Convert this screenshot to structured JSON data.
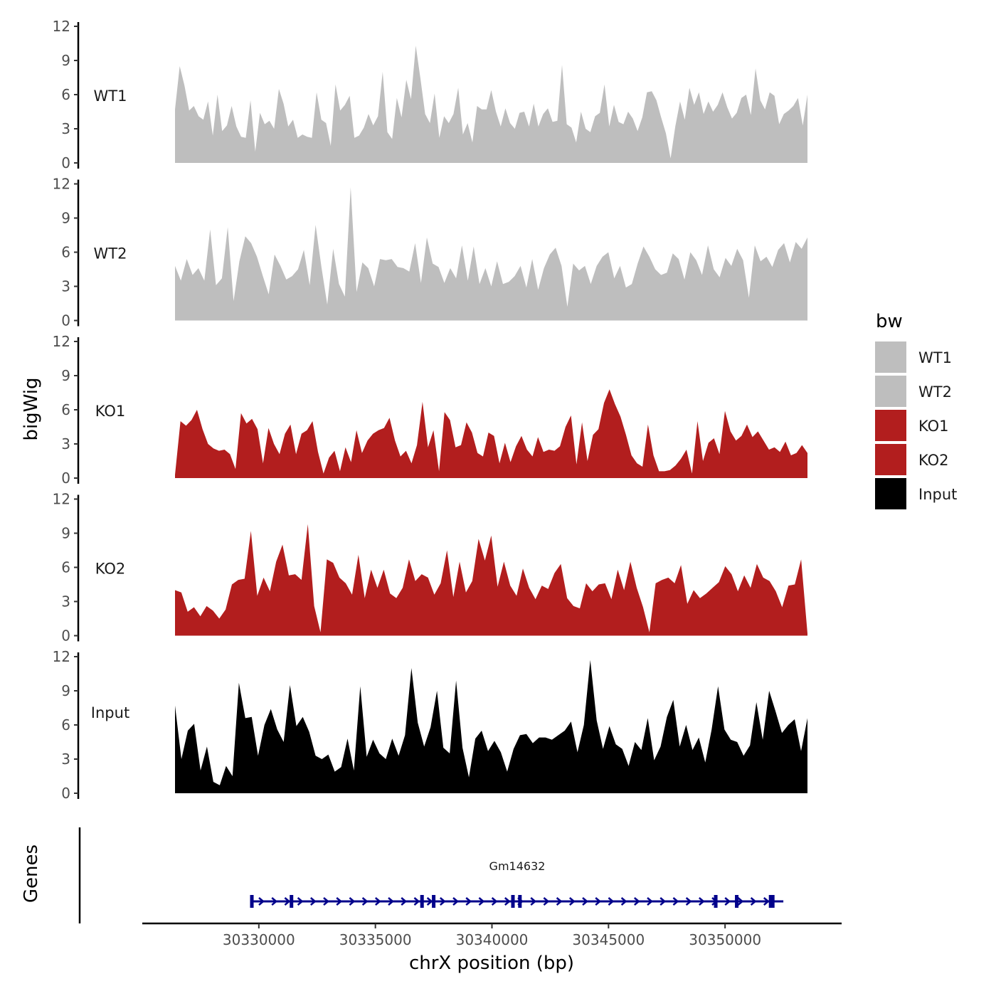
{
  "chart_data": {
    "type": "area",
    "ylabel": "bigWig",
    "xlabel": "chrX position (bp)",
    "x_range": [
      30327500,
      30352500
    ],
    "xlim": [
      30325000,
      30355000
    ],
    "x_ticks": [
      "30330000",
      "30335000",
      "30340000",
      "30345000",
      "30350000"
    ],
    "x_tick_values": [
      30330000,
      30335000,
      30340000,
      30345000,
      30350000
    ],
    "ylim": [
      0,
      12
    ],
    "y_ticks": [
      "0",
      "3",
      "6",
      "9",
      "12"
    ],
    "y_tick_values": [
      0,
      3,
      6,
      9,
      12
    ],
    "series": [
      {
        "name": "WT1",
        "color": "#bebebe",
        "values": [
          4.7,
          8.5,
          6.8,
          4.6,
          5.0,
          4.1,
          3.8,
          5.4,
          2.4,
          6.0,
          2.8,
          3.3,
          5.0,
          3.2,
          2.3,
          2.2,
          5.5,
          1.0,
          4.4,
          3.4,
          3.7,
          3.0,
          6.5,
          5.2,
          3.2,
          3.8,
          2.2,
          2.5,
          2.3,
          2.2,
          6.2,
          3.8,
          3.5,
          1.5,
          6.9,
          4.6,
          5.1,
          5.9,
          2.2,
          2.4,
          3.1,
          4.3,
          3.3,
          4.1,
          8.0,
          2.7,
          2.1,
          5.7,
          4.0,
          7.3,
          5.6,
          10.3,
          7.4,
          4.3,
          3.5,
          6.1,
          2.2,
          4.1,
          3.5,
          4.3,
          6.6,
          2.5,
          3.5,
          1.8,
          5.0,
          4.7,
          4.7,
          6.4,
          4.5,
          3.2,
          4.8,
          3.5,
          3.0,
          4.4,
          4.5,
          3.2,
          5.2,
          3.2,
          4.3,
          4.8,
          3.6,
          3.7,
          8.6,
          3.4,
          3.1,
          1.8,
          4.5,
          3.0,
          2.7,
          4.1,
          4.4,
          6.9,
          3.2,
          5.1,
          3.6,
          3.4,
          4.5,
          3.9,
          2.8,
          4.0,
          6.2,
          6.3,
          5.5,
          4.0,
          2.6,
          0.4,
          3.2,
          5.4,
          3.8,
          6.6,
          5.1,
          6.2,
          4.3,
          5.4,
          4.5,
          5.1,
          6.2,
          4.9,
          3.9,
          4.4,
          5.7,
          6.0,
          4.2,
          8.3,
          5.5,
          4.7,
          6.2,
          5.9,
          3.4,
          4.3,
          4.6,
          5.0,
          5.7,
          3.3,
          6.0
        ]
      },
      {
        "name": "WT2",
        "color": "#bebebe",
        "values": [
          4.8,
          3.5,
          5.4,
          4.0,
          4.6,
          3.5,
          8.0,
          3.1,
          3.7,
          8.2,
          1.7,
          5.2,
          7.4,
          6.8,
          5.6,
          3.9,
          2.3,
          5.8,
          4.8,
          3.6,
          3.9,
          4.5,
          6.2,
          3.1,
          8.4,
          4.7,
          1.4,
          6.3,
          3.2,
          2.1,
          11.7,
          2.5,
          5.1,
          4.6,
          3.0,
          5.4,
          5.3,
          5.4,
          4.7,
          4.6,
          4.3,
          6.8,
          3.3,
          7.3,
          5.0,
          4.7,
          3.3,
          4.6,
          3.7,
          6.6,
          3.5,
          6.5,
          3.2,
          4.6,
          3.0,
          5.2,
          3.2,
          3.4,
          3.9,
          4.8,
          2.9,
          5.4,
          2.7,
          4.6,
          5.8,
          6.4,
          4.8,
          1.2,
          5.0,
          4.4,
          4.8,
          3.2,
          4.8,
          5.6,
          6.0,
          3.7,
          4.8,
          2.9,
          3.2,
          5.0,
          6.5,
          5.6,
          4.5,
          4.0,
          4.2,
          5.9,
          5.4,
          3.6,
          6.0,
          5.3,
          4.0,
          6.6,
          4.5,
          3.8,
          5.5,
          4.8,
          6.3,
          5.3,
          2.0,
          6.6,
          5.2,
          5.6,
          4.7,
          6.2,
          6.8,
          5.1,
          6.9,
          6.3,
          7.3
        ]
      },
      {
        "name": "KO1",
        "color": "#b21e1e",
        "values": [
          0.3,
          5.0,
          4.6,
          5.1,
          6.0,
          4.3,
          3.0,
          2.6,
          2.4,
          2.5,
          2.1,
          0.8,
          5.7,
          4.8,
          5.2,
          4.3,
          1.3,
          4.4,
          3.0,
          2.1,
          3.9,
          4.7,
          2.1,
          3.9,
          4.2,
          5.0,
          2.3,
          0.4,
          1.8,
          2.4,
          0.6,
          2.7,
          1.4,
          4.2,
          2.2,
          3.3,
          3.9,
          4.2,
          4.4,
          5.3,
          3.3,
          1.9,
          2.4,
          1.3,
          2.9,
          6.7,
          2.7,
          4.2,
          0.6,
          5.8,
          5.1,
          2.7,
          2.9,
          4.9,
          4.0,
          2.2,
          1.9,
          4.0,
          3.7,
          1.3,
          3.1,
          1.4,
          2.8,
          3.7,
          2.5,
          1.9,
          3.6,
          2.3,
          2.5,
          2.4,
          2.8,
          4.5,
          5.5,
          1.2,
          4.9,
          1.5,
          3.8,
          4.3,
          6.6,
          7.8,
          6.5,
          5.4,
          3.8,
          2.0,
          1.3,
          1.0,
          4.7,
          2.0,
          0.6,
          0.6,
          0.7,
          1.1,
          1.7,
          2.5,
          0.4,
          5.0,
          1.5,
          3.1,
          3.5,
          2.1,
          5.9,
          4.1,
          3.3,
          3.7,
          4.7,
          3.6,
          4.1,
          3.3,
          2.5,
          2.7,
          2.3,
          3.2,
          2.0,
          2.2,
          2.9,
          2.2
        ]
      },
      {
        "name": "KO2",
        "color": "#b21e1e",
        "values": [
          4.0,
          3.8,
          2.1,
          2.5,
          1.7,
          2.6,
          2.2,
          1.5,
          2.3,
          4.5,
          4.9,
          5.0,
          9.2,
          3.5,
          5.1,
          3.9,
          6.5,
          8.0,
          5.3,
          5.4,
          4.9,
          9.8,
          2.6,
          0.3,
          6.7,
          6.4,
          5.1,
          4.6,
          3.6,
          7.1,
          3.3,
          5.8,
          4.2,
          5.8,
          3.7,
          3.3,
          4.2,
          6.7,
          4.8,
          5.4,
          5.1,
          3.6,
          4.6,
          7.5,
          3.4,
          6.5,
          3.8,
          4.8,
          8.5,
          6.6,
          8.8,
          4.3,
          6.5,
          4.4,
          3.5,
          5.9,
          4.2,
          3.2,
          4.4,
          4.1,
          5.5,
          6.3,
          3.3,
          2.6,
          2.4,
          4.6,
          3.9,
          4.5,
          4.6,
          3.2,
          5.8,
          4.0,
          6.5,
          4.2,
          2.5,
          0.3,
          4.6,
          4.9,
          5.1,
          4.6,
          6.2,
          2.8,
          4.0,
          3.3,
          3.7,
          4.2,
          4.7,
          6.1,
          5.4,
          3.9,
          5.3,
          4.2,
          6.3,
          5.1,
          4.8,
          3.9,
          2.5,
          4.4,
          4.5,
          6.7,
          0.2
        ]
      },
      {
        "name": "Input",
        "color": "#000000",
        "values": [
          7.7,
          3.0,
          5.5,
          6.1,
          2.0,
          4.1,
          1.0,
          0.7,
          2.4,
          1.5,
          9.7,
          6.6,
          6.7,
          3.3,
          6.0,
          7.4,
          5.6,
          4.5,
          9.5,
          5.9,
          6.7,
          5.4,
          3.3,
          3.0,
          3.4,
          1.9,
          2.3,
          4.8,
          2.0,
          9.4,
          3.2,
          4.7,
          3.5,
          3.0,
          4.8,
          3.3,
          5.1,
          11.0,
          6.2,
          4.1,
          5.8,
          9.0,
          4.0,
          3.5,
          9.9,
          4.0,
          1.4,
          4.8,
          5.5,
          3.7,
          4.6,
          3.6,
          1.9,
          3.9,
          5.1,
          5.2,
          4.4,
          4.9,
          4.9,
          4.7,
          5.1,
          5.5,
          6.3,
          3.6,
          6.0,
          11.7,
          6.4,
          3.9,
          5.9,
          4.3,
          3.9,
          2.4,
          4.5,
          3.8,
          6.6,
          2.9,
          4.1,
          6.7,
          8.2,
          4.1,
          6.0,
          3.8,
          4.9,
          2.7,
          5.6,
          9.4,
          5.6,
          4.7,
          4.5,
          3.3,
          4.2,
          8.0,
          4.7,
          9.0,
          7.2,
          5.3,
          6.0,
          6.5,
          3.7,
          6.6
        ]
      }
    ],
    "genes": {
      "label": "Genes",
      "name": "Gm14632",
      "start": 30329700,
      "end": 30352500,
      "color": "#00008b",
      "exon_positions": [
        30329700,
        30331400,
        30337000,
        30337500,
        30340900,
        30341200,
        30349600,
        30350500,
        30352000
      ]
    },
    "legend": {
      "title": "bw",
      "position": "right",
      "items": [
        {
          "label": "WT1",
          "color": "#bebebe"
        },
        {
          "label": "WT2",
          "color": "#bebebe"
        },
        {
          "label": "KO1",
          "color": "#b21e1e"
        },
        {
          "label": "KO2",
          "color": "#b21e1e"
        },
        {
          "label": "Input",
          "color": "#000000"
        }
      ]
    }
  }
}
